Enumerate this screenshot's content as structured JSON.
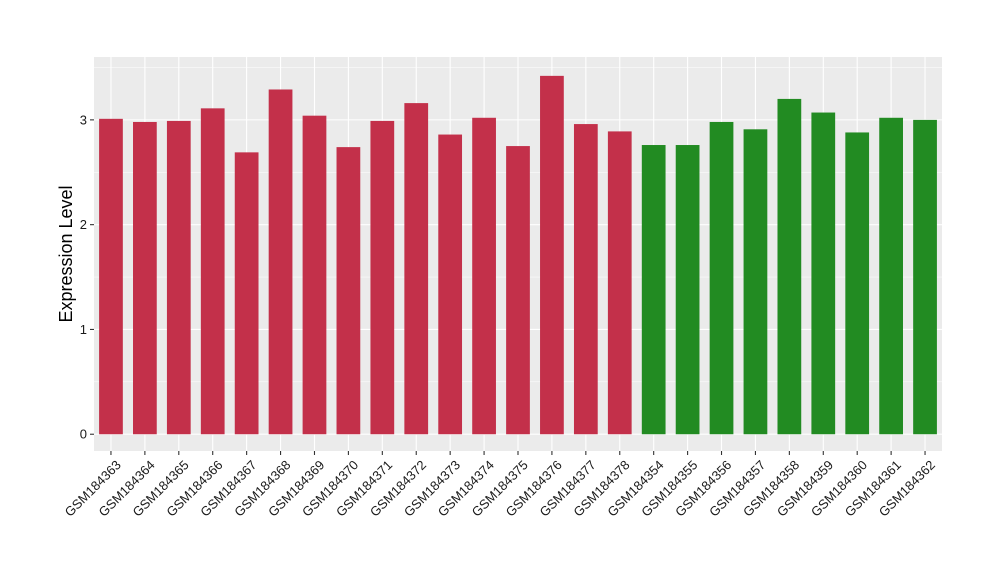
{
  "chart_data": {
    "type": "bar",
    "title": "",
    "xlabel": "",
    "ylabel": "Expression Level",
    "ylim": [
      -0.16,
      3.6
    ],
    "yticks": [
      0,
      1,
      2,
      3
    ],
    "grid": true,
    "categories": [
      "GSM184363",
      "GSM184364",
      "GSM184365",
      "GSM184366",
      "GSM184367",
      "GSM184368",
      "GSM184369",
      "GSM184370",
      "GSM184371",
      "GSM184372",
      "GSM184373",
      "GSM184374",
      "GSM184375",
      "GSM184376",
      "GSM184377",
      "GSM184378",
      "GSM184354",
      "GSM184355",
      "GSM184356",
      "GSM184357",
      "GSM184358",
      "GSM184359",
      "GSM184360",
      "GSM184361",
      "GSM184362"
    ],
    "values": [
      3.01,
      2.98,
      2.99,
      3.11,
      2.69,
      3.29,
      3.04,
      2.74,
      2.99,
      3.16,
      2.86,
      3.02,
      2.75,
      3.42,
      2.96,
      2.89,
      2.76,
      2.76,
      2.98,
      2.91,
      3.2,
      3.07,
      2.88,
      3.02,
      3.0
    ],
    "bar_colors": [
      "#C3304A",
      "#C3304A",
      "#C3304A",
      "#C3304A",
      "#C3304A",
      "#C3304A",
      "#C3304A",
      "#C3304A",
      "#C3304A",
      "#C3304A",
      "#C3304A",
      "#C3304A",
      "#C3304A",
      "#C3304A",
      "#C3304A",
      "#C3304A",
      "#228B22",
      "#228B22",
      "#228B22",
      "#228B22",
      "#228B22",
      "#228B22",
      "#228B22",
      "#228B22",
      "#228B22"
    ],
    "panel_background": "#EBEBEB",
    "gridline_color": "#FFFFFF"
  }
}
